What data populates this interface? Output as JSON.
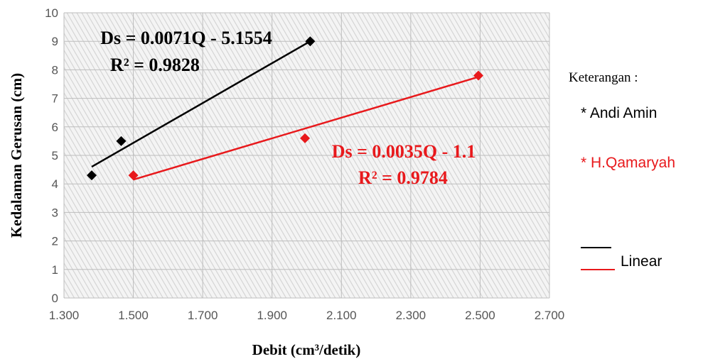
{
  "chart_data": {
    "type": "scatter",
    "xlabel": "Debit (cm³/detik)",
    "ylabel": "Kedalaman Gerusan (cm)",
    "xlim": [
      1.3,
      2.7
    ],
    "ylim": [
      0,
      10
    ],
    "x_ticks": [
      "1.300",
      "1.500",
      "1.700",
      "1.900",
      "2.100",
      "2.300",
      "2.500",
      "2.700"
    ],
    "y_ticks": [
      "0",
      "1",
      "2",
      "3",
      "4",
      "5",
      "6",
      "7",
      "8",
      "9",
      "10"
    ],
    "grid": true,
    "legend_position": "right",
    "series": [
      {
        "name": "* Andi Amin",
        "color": "#000000",
        "marker": "diamond",
        "x": [
          1.38,
          1.465,
          2.01
        ],
        "y": [
          4.3,
          5.5,
          9.0
        ],
        "trendline": {
          "x": [
            1.38,
            2.01
          ],
          "y": [
            4.6,
            9.0
          ]
        },
        "equation": "Ds = 0.0071Q - 5.1554",
        "r2": "R² = 0.9828"
      },
      {
        "name": "* H.Qamaryah",
        "color": "#e8191c",
        "marker": "diamond",
        "x": [
          1.5,
          1.995,
          2.495
        ],
        "y": [
          4.3,
          5.6,
          7.8
        ],
        "trendline": {
          "x": [
            1.5,
            2.495
          ],
          "y": [
            4.15,
            7.75
          ]
        },
        "equation": "Ds = 0.0035Q - 1.1",
        "r2": "R² = 0.9784"
      }
    ],
    "legend": {
      "title": "Keterangan :",
      "linear_label": "Linear"
    }
  }
}
